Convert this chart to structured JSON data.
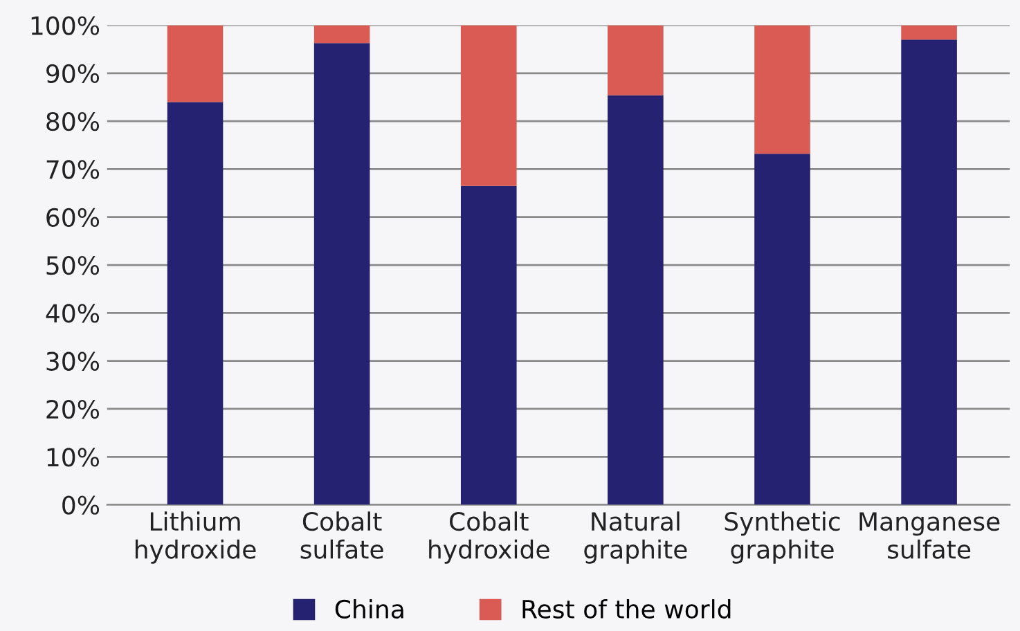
{
  "chart_data": {
    "type": "bar",
    "stacked": true,
    "categories": [
      "Lithium\nhydroxide",
      "Cobalt\nsulfate",
      "Cobalt\nhydroxide",
      "Natural\ngraphite",
      "Synthetic\ngraphite",
      "Manganese\nsulfate"
    ],
    "series": [
      {
        "name": "China",
        "color": "#252271",
        "values": [
          84,
          96.3,
          66.5,
          85.4,
          73.2,
          97
        ]
      },
      {
        "name": "Rest of the world",
        "color": "#d95b53",
        "values": [
          16,
          3.7,
          33.5,
          14.6,
          26.8,
          3
        ]
      }
    ],
    "ylim": [
      0,
      100
    ],
    "yticks": [
      {
        "value": 0,
        "label": "0%"
      },
      {
        "value": 10,
        "label": "10%"
      },
      {
        "value": 20,
        "label": "20%"
      },
      {
        "value": 30,
        "label": "30%"
      },
      {
        "value": 40,
        "label": "40%"
      },
      {
        "value": 50,
        "label": "50%"
      },
      {
        "value": 60,
        "label": "60%"
      },
      {
        "value": 70,
        "label": "70%"
      },
      {
        "value": 80,
        "label": "80%"
      },
      {
        "value": 90,
        "label": "90%"
      },
      {
        "value": 100,
        "label": "100%"
      }
    ],
    "grid": "y",
    "legend": "bottom"
  }
}
